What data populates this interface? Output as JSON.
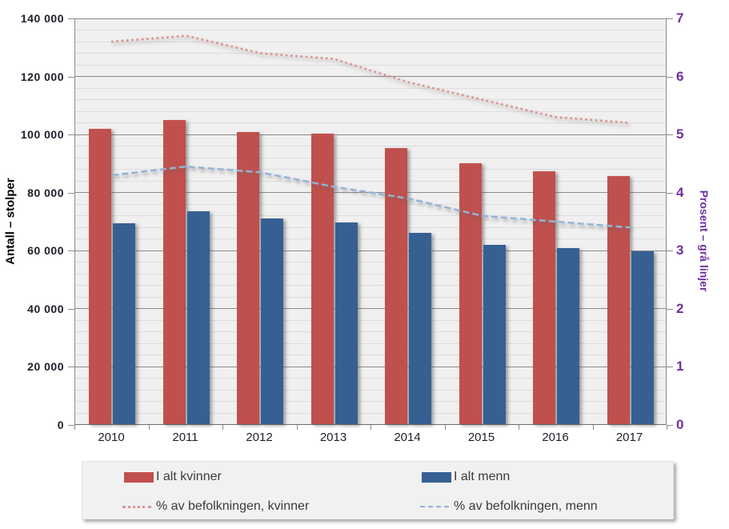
{
  "chart_data": {
    "type": "bar",
    "subtype": "bar-line-combo",
    "categories": [
      "2010",
      "2011",
      "2012",
      "2013",
      "2014",
      "2015",
      "2016",
      "2017"
    ],
    "series": [
      {
        "name": "I alt kvinner",
        "type": "bar",
        "axis": "left",
        "color": "#C0504D",
        "values": [
          101600,
          104700,
          100600,
          100000,
          95200,
          89800,
          87000,
          85300
        ]
      },
      {
        "name": "I alt menn",
        "type": "bar",
        "axis": "left",
        "color": "#366092",
        "values": [
          69100,
          73300,
          70800,
          69400,
          65900,
          61800,
          60700,
          59500
        ]
      },
      {
        "name": "% av befolkningen, kvinner",
        "type": "line",
        "style": "dotted",
        "axis": "right",
        "color": "#D99694",
        "values": [
          6.6,
          6.7,
          6.4,
          6.3,
          5.9,
          5.6,
          5.3,
          5.2
        ]
      },
      {
        "name": "% av befolkningen, menn",
        "type": "line",
        "style": "dashed",
        "axis": "right",
        "color": "#95B3D7",
        "values": [
          4.3,
          4.45,
          4.35,
          4.1,
          3.9,
          3.6,
          3.5,
          3.4
        ]
      }
    ],
    "left_axis": {
      "title": "Antall – stolper",
      "min": 0,
      "max": 140000,
      "major_step": 20000,
      "minor_step": 4000,
      "tick_labels": [
        "0",
        "20 000",
        "40 000",
        "60 000",
        "80 000",
        "100 000",
        "120 000",
        "140 000"
      ]
    },
    "right_axis": {
      "title": "Prosent – grå linjer",
      "min": 0,
      "max": 7,
      "major_step": 1,
      "tick_labels": [
        "0",
        "1",
        "2",
        "3",
        "4",
        "5",
        "6",
        "7"
      ],
      "color": "#7030A0"
    },
    "grid": "major-and-minor-horizontal",
    "legend_position": "bottom"
  },
  "colors": {
    "plot_background": "#F0F0F0",
    "minor_grid": "#DCDCDC",
    "major_grid": "#8C8C8C",
    "axis_text": "#20202E",
    "right_axis_text": "#7030A0",
    "legend_background": "#F1F1F1"
  }
}
